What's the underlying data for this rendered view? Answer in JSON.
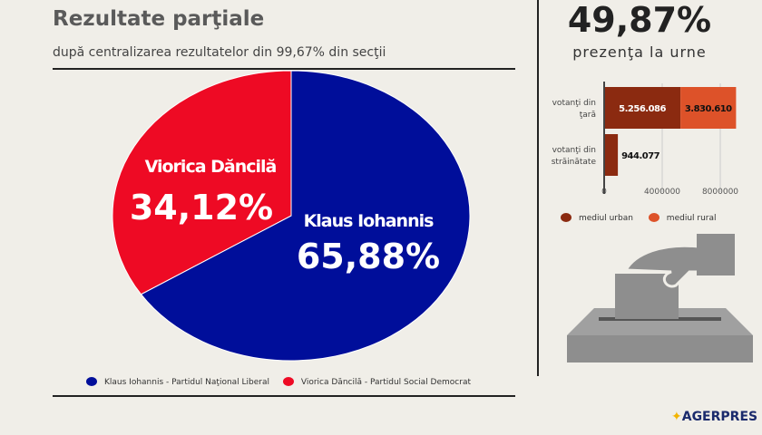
{
  "header": {
    "title": "Rezultate parţiale",
    "subtitle": "după centralizarea rezultatelor din 99,67% din secţii"
  },
  "turnout": {
    "value": "49,87%",
    "label": "prezenţa la urne"
  },
  "chart_data": [
    {
      "type": "pie",
      "slices": [
        {
          "name": "Klaus Iohannis",
          "value": 65.88,
          "label": "65,88%",
          "color": "#000e9a"
        },
        {
          "name": "Viorica Dăncilă",
          "value": 34.12,
          "label": "34,12%",
          "color": "#ee0a24"
        }
      ],
      "legend": [
        "Klaus Iohannis - Partidul Naţional Liberal",
        "Viorica Dăncilă - Partidul Social Democrat"
      ],
      "legend_placement": "bottom"
    },
    {
      "type": "bar",
      "orientation": "horizontal",
      "stacked": true,
      "categories": [
        "votanţi din ţară",
        "votanţi din străinătate"
      ],
      "series": [
        {
          "name": "mediul urban",
          "values": [
            5256086,
            944077
          ],
          "labels": [
            "5.256.086",
            "944.077"
          ],
          "color": "#8b2a10"
        },
        {
          "name": "mediul rural",
          "values": [
            3830610,
            0
          ],
          "labels": [
            "3.830.610",
            ""
          ],
          "color": "#dd5229"
        }
      ],
      "xticks": [
        0,
        4000000,
        8000000
      ],
      "xtick_labels": [
        "0",
        "4000000",
        "8000000"
      ],
      "xlim": [
        0,
        9500000
      ],
      "grid": true,
      "legend_placement": "bottom"
    }
  ],
  "logo": {
    "text": "AGERPRES"
  }
}
